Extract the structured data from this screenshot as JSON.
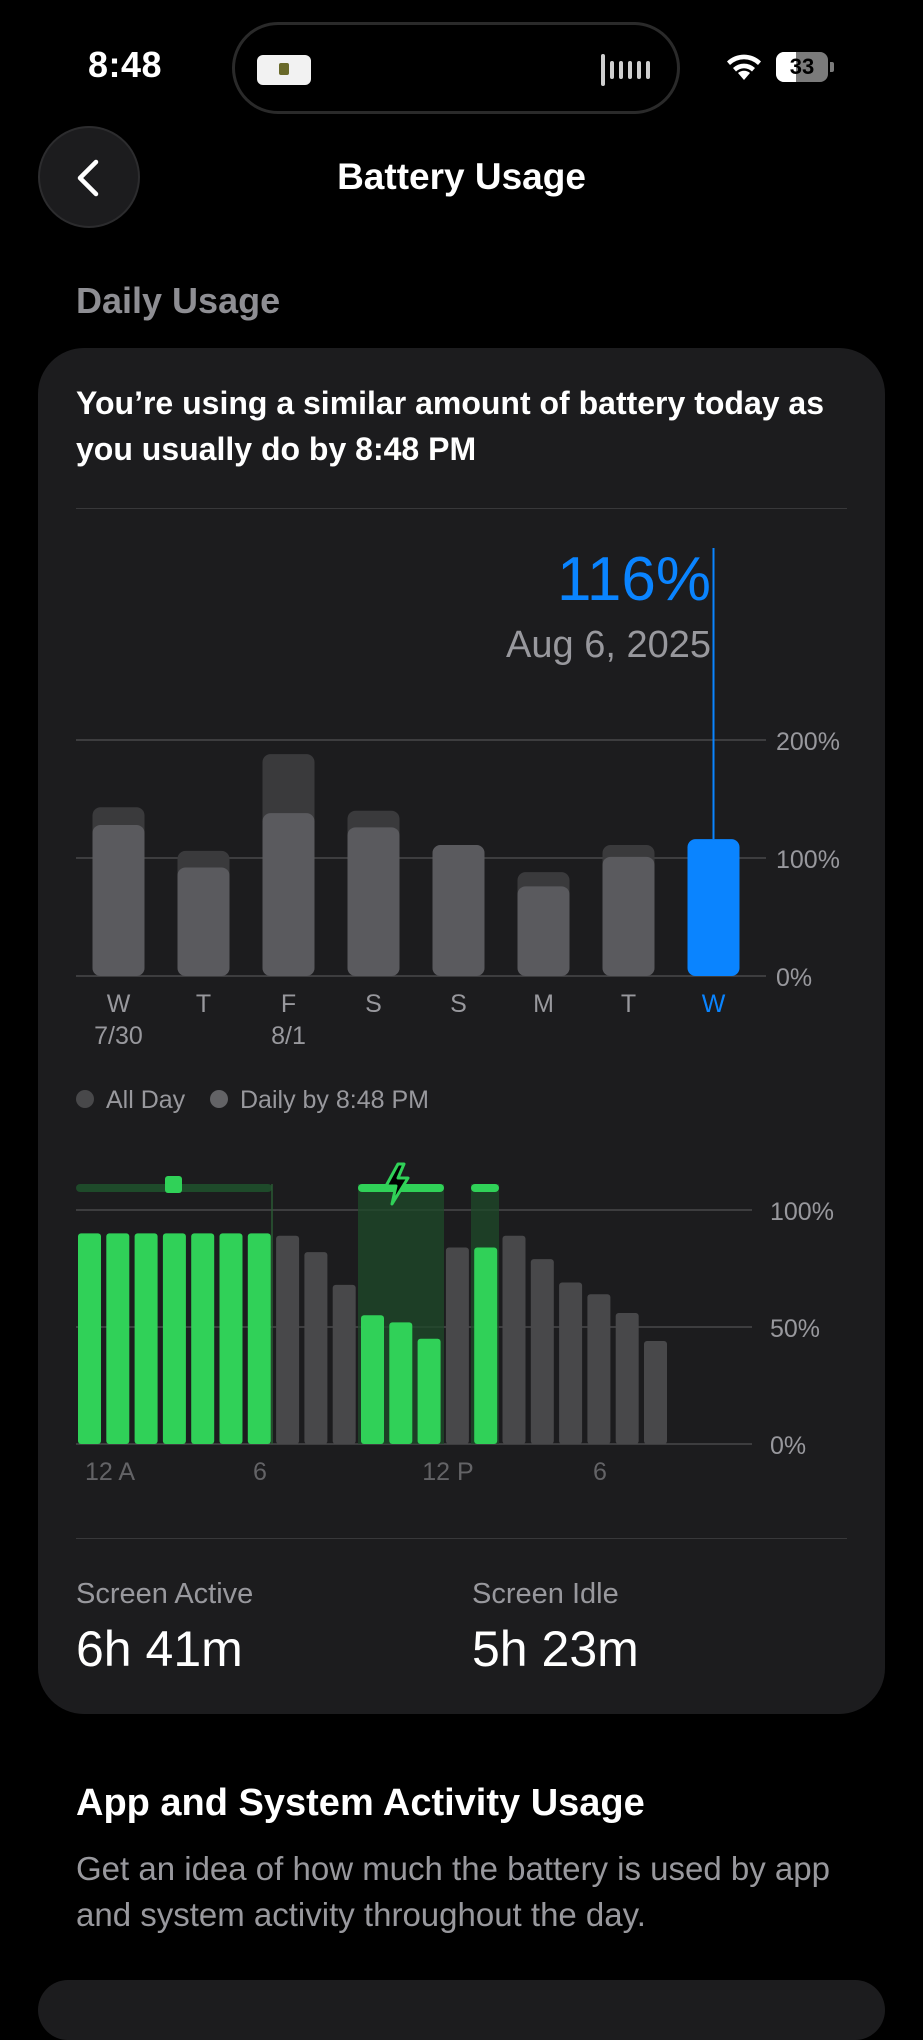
{
  "status_bar": {
    "time": "8:48",
    "battery_level": "33"
  },
  "nav": {
    "title": "Battery Usage"
  },
  "daily_usage": {
    "section_label": "Daily Usage",
    "summary": "You’re using a similar amount of battery today as you usually do by 8:48 PM",
    "selected_value": "116%",
    "selected_date": "Aug 6, 2025",
    "legend": {
      "all_day": "All Day",
      "daily_by": "Daily by 8:48 PM"
    },
    "screen_active_label": "Screen Active",
    "screen_active_value": "6h 41m",
    "screen_idle_label": "Screen Idle",
    "screen_idle_value": "5h 23m"
  },
  "chart_data": [
    {
      "type": "bar",
      "categories": [
        "W",
        "T",
        "F",
        "S",
        "S",
        "M",
        "T",
        "W"
      ],
      "sublabels": [
        "7/30",
        "",
        "8/1",
        "",
        "",
        "",
        "",
        ""
      ],
      "series": [
        {
          "name": "All Day",
          "values": [
            143,
            106,
            188,
            140,
            111,
            88,
            111,
            116
          ]
        },
        {
          "name": "Daily by 8:48 PM",
          "values": [
            128,
            92,
            138,
            126,
            111,
            76,
            101,
            116
          ]
        }
      ],
      "highlight_index": 7,
      "y_ticks": [
        "0%",
        "100%",
        "200%"
      ],
      "ylim": [
        0,
        200
      ],
      "grid": true,
      "colors": {
        "all_day": "#48484a",
        "daily_by": "#636366",
        "highlight": "#0a84ff"
      }
    },
    {
      "type": "bar",
      "x_ticks": [
        "12 A",
        "6",
        "12 P",
        "6"
      ],
      "y_ticks": [
        "0%",
        "50%",
        "100%"
      ],
      "ylim": [
        0,
        100
      ],
      "values": [
        90,
        90,
        90,
        90,
        90,
        90,
        90,
        89,
        82,
        68,
        55,
        52,
        45,
        84,
        84,
        89,
        79,
        69,
        64,
        56,
        44
      ],
      "charging": [
        true,
        true,
        true,
        true,
        true,
        true,
        true,
        false,
        false,
        false,
        true,
        true,
        true,
        false,
        true,
        false,
        false,
        false,
        false,
        false,
        false
      ],
      "grid": true,
      "colors": {
        "charging": "#30d158",
        "discharging": "#48484a"
      }
    }
  ],
  "app_activity": {
    "title": "App and System Activity Usage",
    "description": "Get an idea of how much the battery is used by app and system activity throughout the day."
  }
}
